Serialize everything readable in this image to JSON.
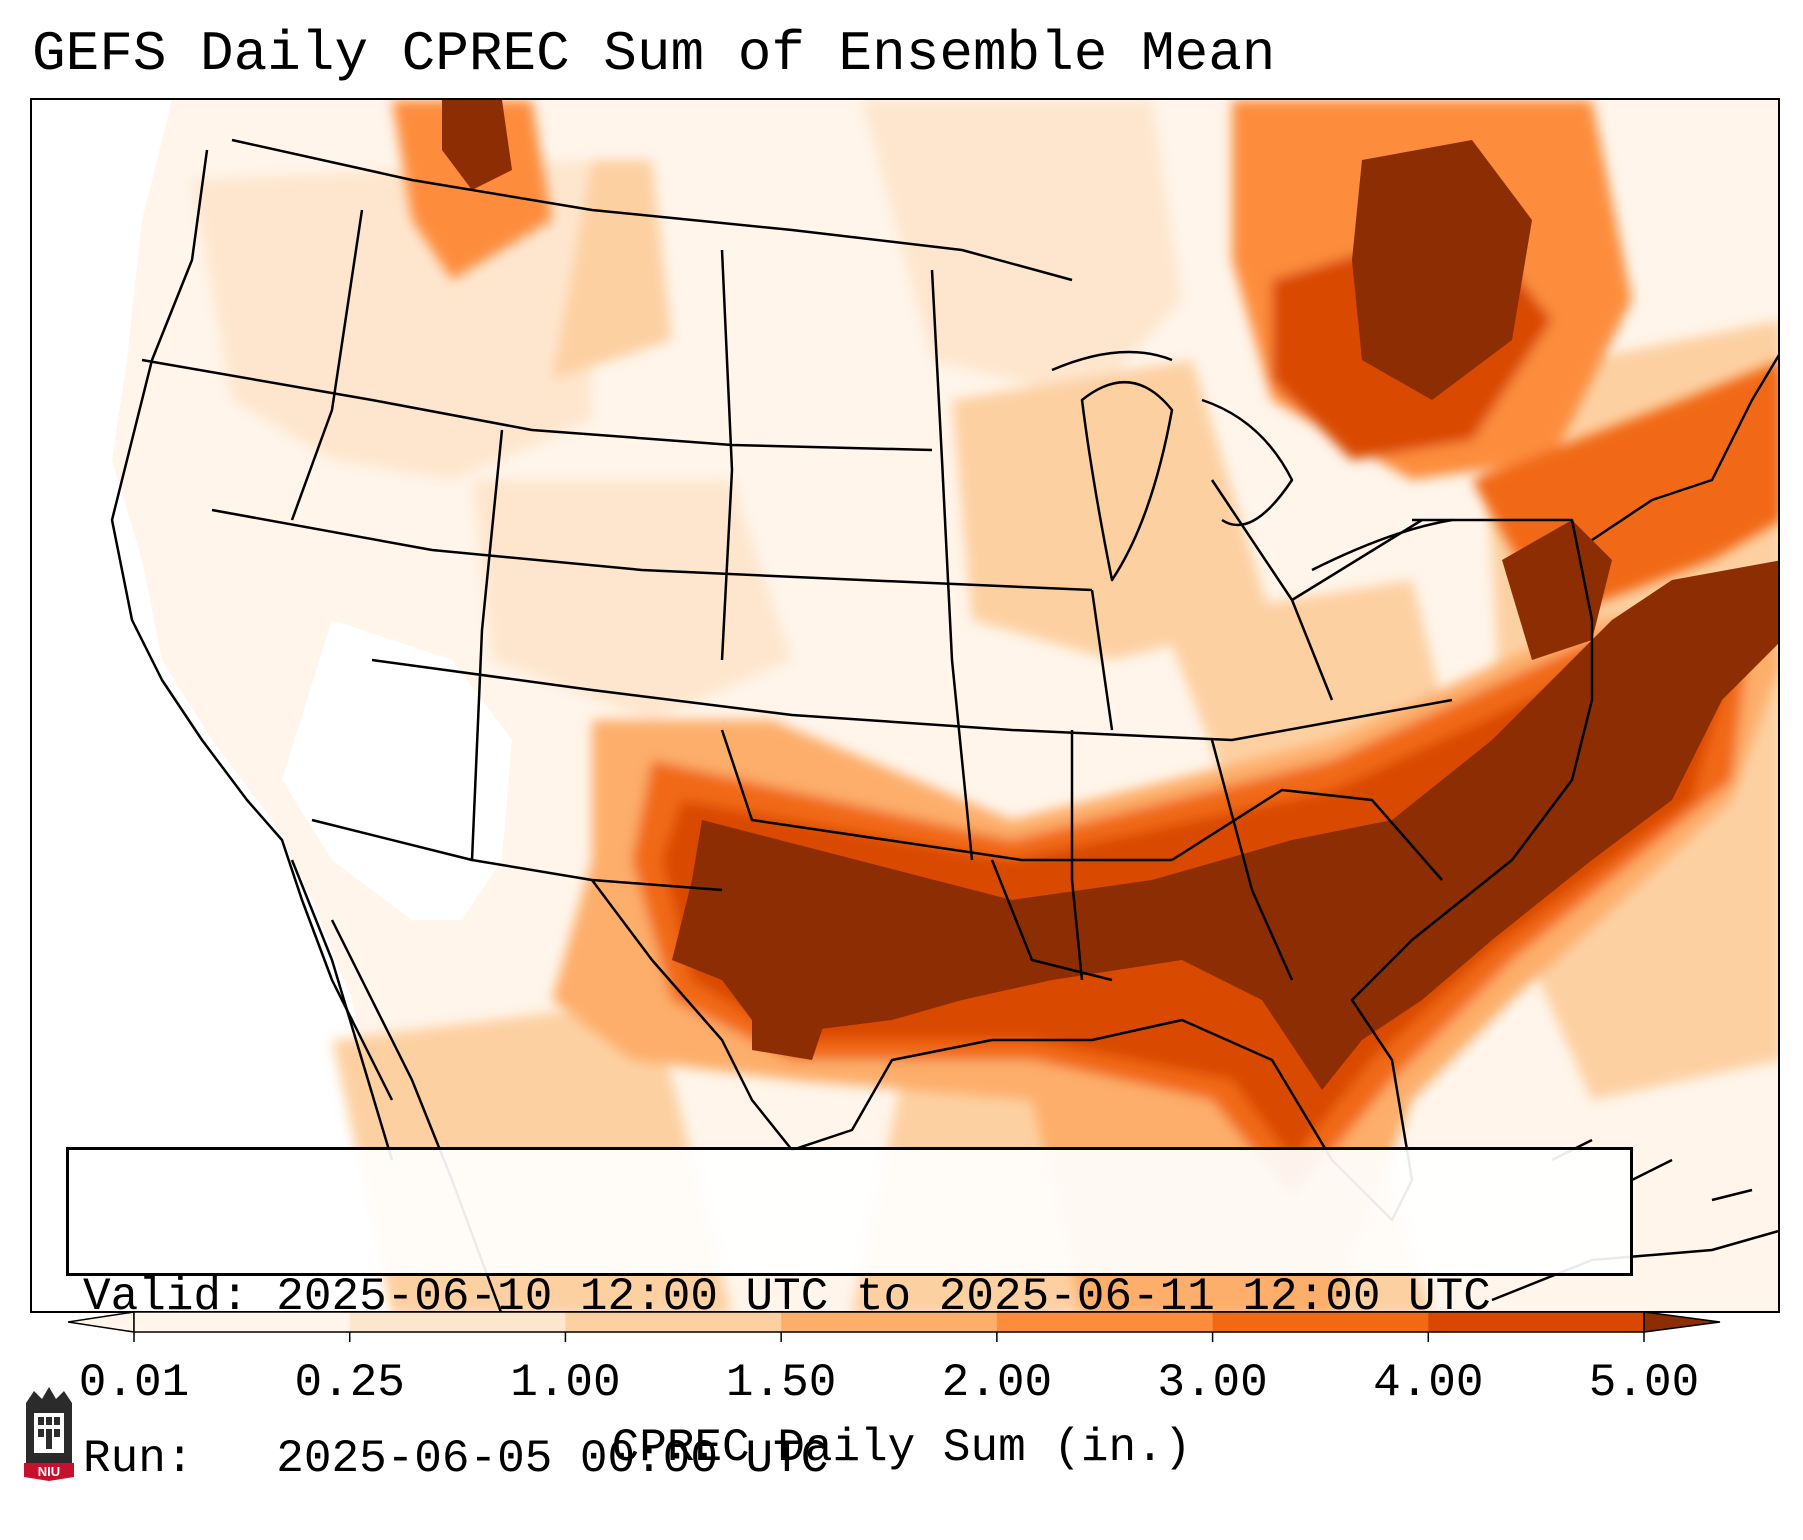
{
  "title": "GEFS Daily CPREC Sum of Ensemble Mean",
  "info": {
    "valid_label": "Valid:",
    "valid_value": "2025-06-10 12:00 UTC to 2025-06-11 12:00 UTC",
    "run_label": "Run:",
    "run_value": "2025-06-05 00:00 UTC"
  },
  "colorbar": {
    "label": "CPREC Daily Sum (in.)",
    "ticks": [
      "0.01",
      "0.25",
      "1.00",
      "1.50",
      "2.00",
      "3.00",
      "4.00",
      "5.00"
    ],
    "colors": [
      "#fff5eb",
      "#fee6ce",
      "#fdd0a2",
      "#fdae6b",
      "#fd8d3c",
      "#f16913",
      "#d94801",
      "#8c2d04"
    ],
    "extend": "both"
  },
  "map": {
    "region": "CONUS",
    "field": "convective precipitation daily sum",
    "heaviest_region": "Southern Plains to Southeast US and Atlantic coast",
    "colors": {
      "none": "#ffffff",
      "light": "#fff5eb",
      "low": "#fee6ce",
      "moderate": "#fdd0a2",
      "medium": "#fdae6b",
      "high": "#fd8d3c",
      "very_high": "#f16913",
      "heavy": "#d94801",
      "extreme": "#8c2d04"
    }
  },
  "logo": {
    "text": "NIU",
    "icon": "niu-tower-icon",
    "color": "#c8102e"
  }
}
